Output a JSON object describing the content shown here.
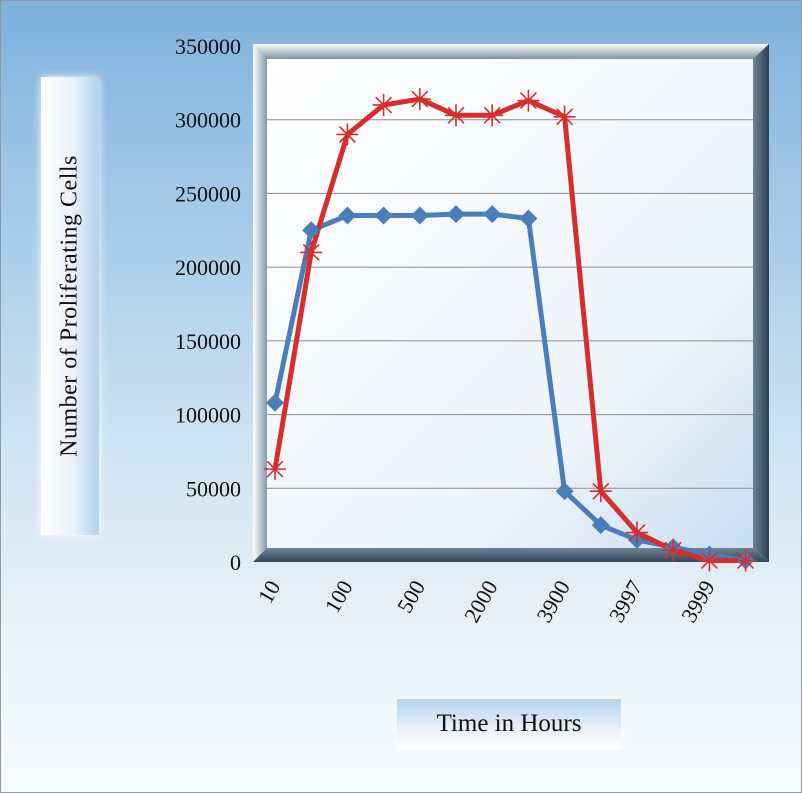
{
  "colors": {
    "series_blue": "#4a7ebb",
    "series_red": "#d62d2d",
    "grid": "#8c8c8c"
  },
  "chart_data": {
    "type": "line",
    "title": "",
    "xlabel": "Time in Hours",
    "ylabel": "Number of Proliferating Cells",
    "ylim": [
      0,
      350000
    ],
    "yticks": [
      0,
      50000,
      100000,
      150000,
      200000,
      250000,
      300000,
      350000
    ],
    "x_tick_labels": [
      "10",
      "100",
      "500",
      "2000",
      "3900",
      "3997",
      "3999"
    ],
    "grid": true,
    "legend": "none",
    "series": [
      {
        "color": "#4a7ebb",
        "marker": "diamond",
        "values": [
          108000,
          225000,
          235000,
          235000,
          235000,
          236000,
          236000,
          233000,
          48000,
          25000,
          15000,
          10000,
          5000,
          1000
        ]
      },
      {
        "color": "#d62d2d",
        "marker": "asterisk",
        "values": [
          63000,
          210000,
          290000,
          310000,
          314000,
          303000,
          303000,
          313000,
          302000,
          48000,
          20000,
          8000,
          1000,
          1000
        ]
      }
    ]
  }
}
